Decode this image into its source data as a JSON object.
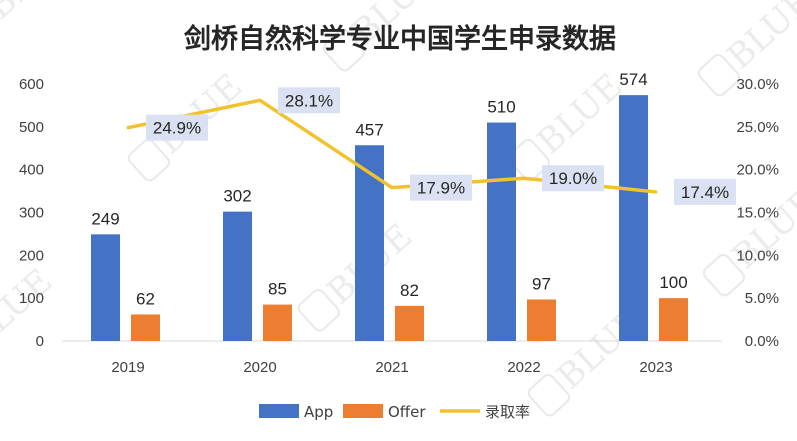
{
  "chart_data": {
    "type": "bar",
    "title": "剑桥自然科学专业中国学生申录数据",
    "categories": [
      "2019",
      "2020",
      "2021",
      "2022",
      "2023"
    ],
    "series": [
      {
        "name": "App",
        "type": "bar",
        "axis": "left",
        "color": "#4472c4",
        "values": [
          249,
          302,
          457,
          510,
          574
        ]
      },
      {
        "name": "Offer",
        "type": "bar",
        "axis": "left",
        "color": "#ed7d31",
        "values": [
          62,
          85,
          82,
          97,
          100
        ]
      },
      {
        "name": "录取率",
        "type": "line",
        "axis": "right",
        "color": "#f2c12e",
        "values": [
          24.9,
          28.1,
          17.9,
          19.0,
          17.4
        ]
      }
    ],
    "left_axis": {
      "ylim": [
        0,
        600
      ],
      "ticks": [
        "0",
        "100",
        "200",
        "300",
        "400",
        "500",
        "600"
      ]
    },
    "right_axis": {
      "ylim": [
        0,
        30
      ],
      "ticks": [
        "0.0%",
        "5.0%",
        "10.0%",
        "15.0%",
        "20.0%",
        "25.0%",
        "30.0%"
      ]
    },
    "rate_labels": [
      "24.9%",
      "28.1%",
      "17.9%",
      "19.0%",
      "17.4%"
    ],
    "grid": false,
    "legend": "bottom"
  },
  "watermark": {
    "text": "BLUE"
  }
}
